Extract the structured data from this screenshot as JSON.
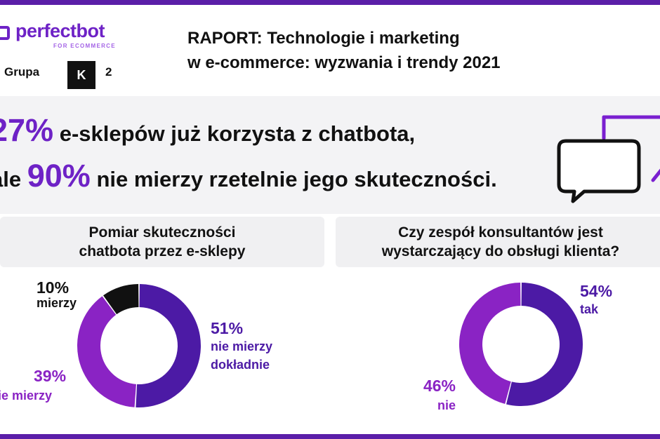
{
  "brand": {
    "name": "perfectbot",
    "subtitle": "FOR ECOMMERCE"
  },
  "partner": {
    "label": "Grupa",
    "box": "K",
    "number": "2"
  },
  "report": {
    "line1": "RAPORT: Technologie i marketing",
    "line2": "w e-commerce: wyzwania i trendy 2021"
  },
  "headline": {
    "pct1": "27%",
    "text1": "e-sklepów już korzysta z chatbota,",
    "prefix2": "ale",
    "pct2": "90%",
    "text2": "nie mierzy rzetelnie jego skuteczności."
  },
  "colors": {
    "dark_purple": "#4c1aa5",
    "purple": "#8a23c4",
    "black": "#111111",
    "brand": "#6e22c6"
  },
  "chart_data": [
    {
      "type": "pie",
      "style": "donut",
      "title": "Pomiar skuteczności chatbota przez e-sklepy",
      "title_line1": "Pomiar skuteczności",
      "title_line2": "chatbota przez e-sklepy",
      "slices": [
        {
          "pct": "51%",
          "value": 51,
          "label": "nie mierzy",
          "label2": "dokładnie",
          "color": "#4c1aa5"
        },
        {
          "pct": "39%",
          "value": 39,
          "label": "nie mierzy",
          "label2": "",
          "color": "#8a23c4"
        },
        {
          "pct": "10%",
          "value": 10,
          "label": "mierzy",
          "label2": "",
          "color": "#111111"
        }
      ]
    },
    {
      "type": "pie",
      "style": "donut",
      "title": "Czy zespół konsultantów jest wystarczający do obsługi klienta?",
      "title_line1": "Czy zespół konsultantów jest",
      "title_line2": "wystarczający do obsługi klienta?",
      "slices": [
        {
          "pct": "54%",
          "value": 54,
          "label": "tak",
          "color": "#4c1aa5"
        },
        {
          "pct": "46%",
          "value": 46,
          "label": "nie",
          "color": "#8a23c4"
        }
      ]
    }
  ]
}
